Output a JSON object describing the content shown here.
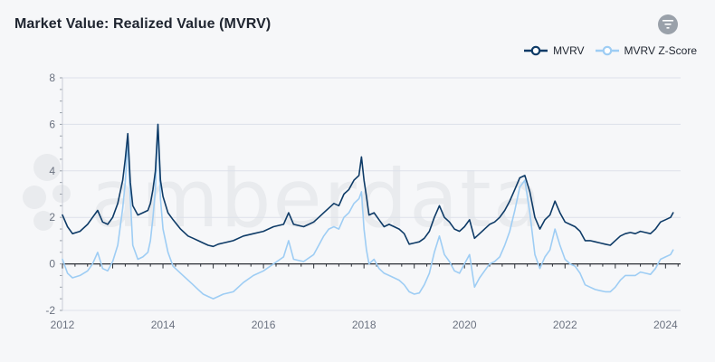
{
  "header": {
    "title": "Market Value: Realized Value (MVRV)"
  },
  "icons": {
    "filter": "filter-icon",
    "watermark_logo": "amberdata-logo"
  },
  "watermark": {
    "text": "amberdata"
  },
  "colors": {
    "mvrv": "#0e3b67",
    "zscore": "#9ecdf4",
    "grid": "#dde1ea",
    "axis": "#2b2f36",
    "filter_bg": "#9aa1aa"
  },
  "chart_data": {
    "type": "line",
    "title": "Market Value: Realized Value (MVRV)",
    "xlabel": "",
    "ylabel": "",
    "xlim": [
      2012,
      2024.3
    ],
    "ylim": [
      -2,
      8
    ],
    "x_ticks": [
      2012,
      2014,
      2016,
      2018,
      2020,
      2022,
      2024
    ],
    "x_tick_labels": [
      "2012",
      "2014",
      "2016",
      "2018",
      "2020",
      "2022",
      "2024"
    ],
    "y_ticks": [
      -2,
      0,
      2,
      4,
      6,
      8
    ],
    "y_tick_labels": [
      "-2",
      "0",
      "2",
      "4",
      "6",
      "8"
    ],
    "grid": true,
    "legend_position": "top-right",
    "series": [
      {
        "name": "MVRV",
        "color": "#0e3b67",
        "x": [
          2012.0,
          2012.1,
          2012.2,
          2012.35,
          2012.5,
          2012.6,
          2012.7,
          2012.8,
          2012.9,
          2013.0,
          2013.1,
          2013.2,
          2013.25,
          2013.3,
          2013.35,
          2013.4,
          2013.5,
          2013.6,
          2013.7,
          2013.75,
          2013.8,
          2013.85,
          2013.9,
          2013.95,
          2014.0,
          2014.1,
          2014.2,
          2014.35,
          2014.5,
          2014.6,
          2014.7,
          2014.8,
          2014.9,
          2015.0,
          2015.1,
          2015.2,
          2015.4,
          2015.6,
          2015.8,
          2016.0,
          2016.2,
          2016.4,
          2016.5,
          2016.6,
          2016.8,
          2017.0,
          2017.1,
          2017.2,
          2017.3,
          2017.4,
          2017.5,
          2017.6,
          2017.7,
          2017.8,
          2017.9,
          2017.95,
          2018.0,
          2018.05,
          2018.1,
          2018.2,
          2018.3,
          2018.4,
          2018.5,
          2018.6,
          2018.7,
          2018.8,
          2018.9,
          2019.0,
          2019.1,
          2019.2,
          2019.3,
          2019.4,
          2019.5,
          2019.6,
          2019.7,
          2019.8,
          2019.9,
          2020.0,
          2020.1,
          2020.2,
          2020.3,
          2020.4,
          2020.5,
          2020.6,
          2020.7,
          2020.8,
          2020.9,
          2021.0,
          2021.1,
          2021.2,
          2021.3,
          2021.4,
          2021.5,
          2021.6,
          2021.7,
          2021.8,
          2021.9,
          2022.0,
          2022.1,
          2022.2,
          2022.3,
          2022.4,
          2022.5,
          2022.6,
          2022.7,
          2022.8,
          2022.9,
          2023.0,
          2023.1,
          2023.2,
          2023.3,
          2023.4,
          2023.5,
          2023.6,
          2023.7,
          2023.8,
          2023.9,
          2024.0,
          2024.1,
          2024.15
        ],
        "y": [
          2.1,
          1.6,
          1.3,
          1.4,
          1.7,
          2.0,
          2.3,
          1.8,
          1.7,
          2.0,
          2.6,
          3.6,
          4.5,
          5.6,
          3.5,
          2.5,
          2.1,
          2.2,
          2.3,
          2.6,
          3.2,
          4.0,
          6.0,
          3.6,
          2.9,
          2.2,
          1.9,
          1.5,
          1.2,
          1.1,
          1.0,
          0.9,
          0.8,
          0.75,
          0.85,
          0.9,
          1.0,
          1.2,
          1.3,
          1.4,
          1.6,
          1.7,
          2.2,
          1.7,
          1.6,
          1.8,
          2.0,
          2.2,
          2.4,
          2.6,
          2.5,
          3.0,
          3.2,
          3.6,
          3.8,
          4.6,
          3.6,
          2.9,
          2.1,
          2.2,
          1.9,
          1.6,
          1.7,
          1.6,
          1.5,
          1.3,
          0.85,
          0.9,
          0.95,
          1.1,
          1.4,
          2.0,
          2.5,
          2.0,
          1.8,
          1.5,
          1.4,
          1.6,
          1.9,
          1.1,
          1.3,
          1.5,
          1.7,
          1.8,
          2.0,
          2.3,
          2.7,
          3.2,
          3.7,
          3.8,
          3.1,
          2.0,
          1.5,
          1.9,
          2.1,
          2.7,
          2.2,
          1.8,
          1.7,
          1.6,
          1.4,
          1.0,
          1.0,
          0.95,
          0.9,
          0.85,
          0.8,
          1.0,
          1.2,
          1.3,
          1.35,
          1.3,
          1.4,
          1.35,
          1.3,
          1.5,
          1.8,
          1.9,
          2.0,
          2.2
        ]
      },
      {
        "name": "MVRV Z-Score",
        "color": "#9ecdf4",
        "x": [
          2012.0,
          2012.1,
          2012.2,
          2012.35,
          2012.5,
          2012.6,
          2012.7,
          2012.8,
          2012.9,
          2013.0,
          2013.1,
          2013.2,
          2013.25,
          2013.3,
          2013.35,
          2013.4,
          2013.5,
          2013.6,
          2013.7,
          2013.75,
          2013.8,
          2013.85,
          2013.9,
          2013.95,
          2014.0,
          2014.1,
          2014.2,
          2014.35,
          2014.5,
          2014.6,
          2014.7,
          2014.8,
          2014.9,
          2015.0,
          2015.1,
          2015.2,
          2015.4,
          2015.6,
          2015.8,
          2016.0,
          2016.2,
          2016.4,
          2016.5,
          2016.6,
          2016.8,
          2017.0,
          2017.1,
          2017.2,
          2017.3,
          2017.4,
          2017.5,
          2017.6,
          2017.7,
          2017.8,
          2017.9,
          2017.95,
          2018.0,
          2018.05,
          2018.1,
          2018.2,
          2018.3,
          2018.4,
          2018.5,
          2018.6,
          2018.7,
          2018.8,
          2018.9,
          2019.0,
          2019.1,
          2019.2,
          2019.3,
          2019.4,
          2019.5,
          2019.6,
          2019.7,
          2019.8,
          2019.9,
          2020.0,
          2020.1,
          2020.2,
          2020.3,
          2020.4,
          2020.5,
          2020.6,
          2020.7,
          2020.8,
          2020.9,
          2021.0,
          2021.1,
          2021.2,
          2021.3,
          2021.4,
          2021.5,
          2021.6,
          2021.7,
          2021.8,
          2021.9,
          2022.0,
          2022.1,
          2022.2,
          2022.3,
          2022.4,
          2022.5,
          2022.6,
          2022.7,
          2022.8,
          2022.9,
          2023.0,
          2023.1,
          2023.2,
          2023.3,
          2023.4,
          2023.5,
          2023.6,
          2023.7,
          2023.8,
          2023.9,
          2024.0,
          2024.1,
          2024.15
        ],
        "y": [
          0.2,
          -0.4,
          -0.6,
          -0.5,
          -0.3,
          0.0,
          0.5,
          -0.2,
          -0.3,
          0.1,
          0.8,
          2.4,
          3.5,
          5.3,
          2.8,
          0.8,
          0.2,
          0.3,
          0.5,
          1.0,
          2.0,
          3.2,
          6.0,
          2.8,
          1.5,
          0.5,
          -0.1,
          -0.4,
          -0.7,
          -0.9,
          -1.1,
          -1.3,
          -1.4,
          -1.5,
          -1.4,
          -1.3,
          -1.2,
          -0.8,
          -0.5,
          -0.3,
          0.0,
          0.3,
          1.0,
          0.2,
          0.1,
          0.4,
          0.8,
          1.2,
          1.5,
          1.6,
          1.5,
          2.0,
          2.2,
          2.6,
          2.8,
          3.1,
          1.5,
          0.6,
          0.0,
          0.2,
          -0.2,
          -0.4,
          -0.5,
          -0.6,
          -0.7,
          -0.9,
          -1.2,
          -1.3,
          -1.25,
          -0.9,
          -0.4,
          0.5,
          1.2,
          0.4,
          0.1,
          -0.3,
          -0.4,
          0.0,
          0.4,
          -1.0,
          -0.6,
          -0.3,
          0.0,
          0.1,
          0.3,
          0.8,
          1.4,
          2.3,
          3.3,
          3.6,
          2.2,
          0.4,
          -0.2,
          0.3,
          0.6,
          1.5,
          0.8,
          0.2,
          0.0,
          -0.1,
          -0.4,
          -0.9,
          -1.0,
          -1.1,
          -1.15,
          -1.2,
          -1.2,
          -1.0,
          -0.7,
          -0.5,
          -0.5,
          -0.5,
          -0.35,
          -0.4,
          -0.45,
          -0.2,
          0.2,
          0.3,
          0.4,
          0.6
        ]
      }
    ]
  }
}
